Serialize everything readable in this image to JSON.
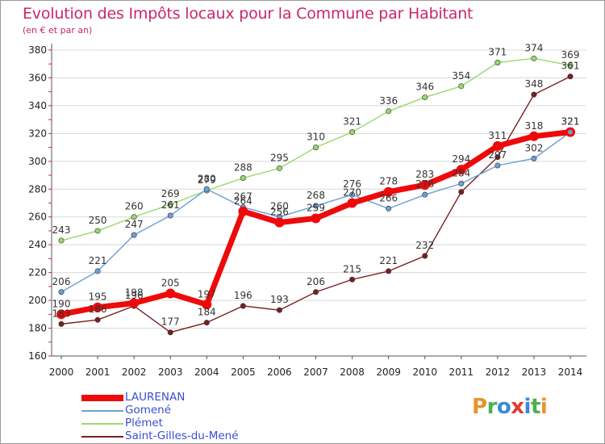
{
  "title": "Evolution des Impôts locaux pour la Commune par Habitant",
  "subtitle": "(en € et par an)",
  "logo": {
    "text": "Proxiti",
    "colors": [
      "#e8932b",
      "#4bb04f",
      "#3a8ad6",
      "#e23b2f",
      "#3a8ad6",
      "#4bb04f",
      "#e8932b"
    ]
  },
  "colors": {
    "title": "#c8266b",
    "axis_text": "#222222",
    "grid": "#d8d8d8",
    "legend_text": "#3a4fd0"
  },
  "chart_data": {
    "type": "line",
    "x": [
      "2000",
      "2001",
      "2002",
      "2003",
      "2004",
      "2005",
      "2006",
      "2007",
      "2008",
      "2009",
      "2010",
      "2011",
      "2012",
      "2013",
      "2014"
    ],
    "ylim": [
      160,
      380
    ],
    "yticks": [
      160,
      180,
      200,
      220,
      240,
      260,
      280,
      300,
      320,
      340,
      360,
      380
    ],
    "grid": true,
    "legend_position": "bottom-left",
    "series": [
      {
        "name": "Saint-Gilles-du-Mené",
        "color": "#7a1f1f",
        "values": [
          183,
          186,
          196,
          177,
          184,
          196,
          193,
          206,
          215,
          221,
          232,
          278,
          303,
          348,
          361
        ],
        "labels": [
          "183",
          "186",
          "196",
          "177",
          "184",
          "196",
          "193",
          "206",
          "215",
          "221",
          "232",
          "",
          "",
          "348",
          "361"
        ]
      },
      {
        "name": "Plémet",
        "color": "#96d96a",
        "values": [
          243,
          250,
          260,
          269,
          279,
          288,
          295,
          310,
          321,
          336,
          346,
          354,
          371,
          374,
          369
        ],
        "labels": [
          "243",
          "250",
          "260",
          "269",
          "279",
          "288",
          "295",
          "310",
          "321",
          "336",
          "346",
          "354",
          "371",
          "374",
          "369"
        ]
      },
      {
        "name": "Gomené",
        "color": "#6aa0d6",
        "values": [
          206,
          221,
          247,
          261,
          280,
          267,
          260,
          268,
          276,
          266,
          276,
          284,
          297,
          302,
          321
        ],
        "labels": [
          "206",
          "221",
          "247",
          "261",
          "280",
          "267",
          "260",
          "268",
          "276",
          "266",
          "276",
          "284",
          "297",
          "302",
          "321"
        ]
      },
      {
        "name": "LAURENAN",
        "color": "#ee0a0a",
        "values": [
          190,
          195,
          198,
          205,
          197,
          264,
          256,
          259,
          270,
          278,
          283,
          294,
          311,
          318,
          321
        ],
        "labels": [
          "190",
          "195",
          "198",
          "205",
          "197",
          "264",
          "256",
          "259",
          "270",
          "278",
          "283",
          "294",
          "311",
          "318",
          "321"
        ]
      }
    ]
  }
}
